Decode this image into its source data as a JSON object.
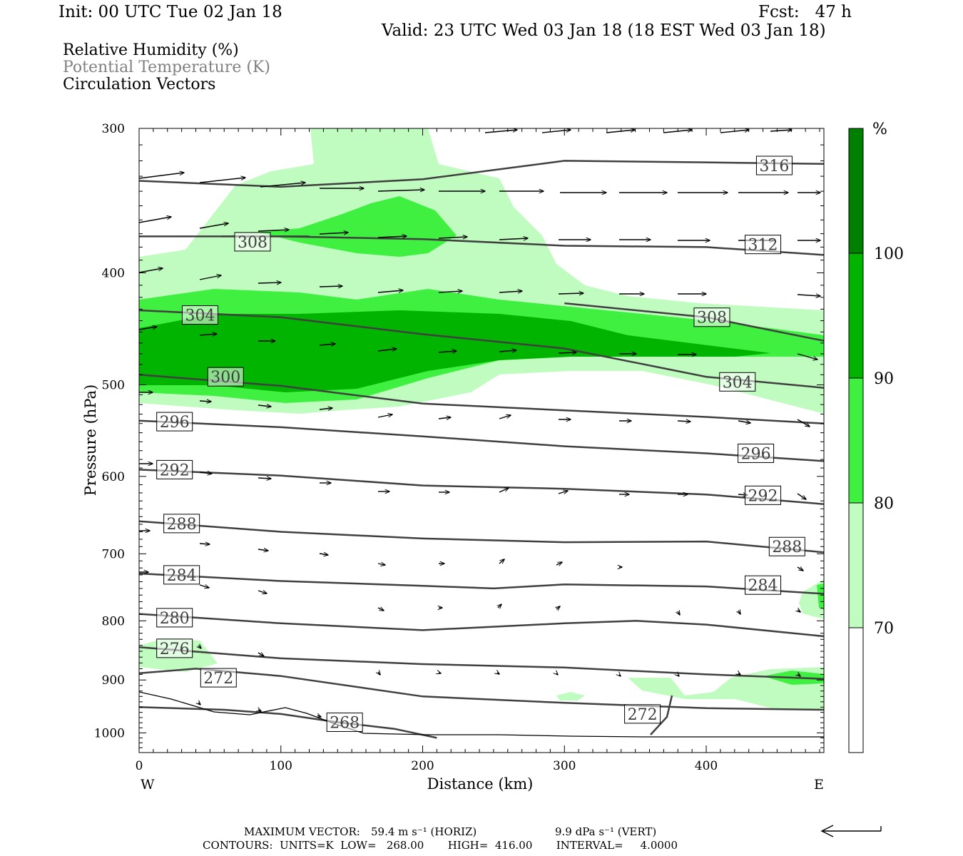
{
  "header": {
    "init": "Init: 00 UTC Tue 02 Jan 18",
    "fcst": "Fcst:   47 h",
    "valid": "Valid: 23 UTC Wed 03 Jan 18 (18 EST Wed 03 Jan 18)"
  },
  "legend_text": {
    "rh": "Relative Humidity (%)",
    "theta": "Potential Temperature (K)",
    "vectors": "Circulation Vectors"
  },
  "footer": {
    "max_vector_label": "MAXIMUM VECTOR:",
    "horiz": "59.4 m s⁻¹ (HORIZ)",
    "vert": "9.9 dPa s⁻¹ (VERT)",
    "contours": "CONTOURS:  UNITS=K  LOW=   268.00       HIGH=  416.00       INTERVAL=     4.0000"
  },
  "colors": {
    "rh_70": "#c0fcc0",
    "rh_80": "#40f040",
    "rh_90": "#00b400",
    "rh_100": "#008000",
    "contour": "#404040"
  },
  "chart_data": {
    "type": "contour",
    "xlabel": "Distance (km)",
    "ylabel": "Pressure (hPa)",
    "xlim": [
      0,
      483
    ],
    "ylim": [
      1040,
      300
    ],
    "xticks": [
      "0",
      "100",
      "200",
      "300",
      "400"
    ],
    "yticks": [
      "300",
      "400",
      "500",
      "600",
      "700",
      "800",
      "900",
      "1000"
    ],
    "x_end_labels": {
      "left": "W",
      "right": "E"
    },
    "colorbar": {
      "unit": "%",
      "levels": [
        "70",
        "80",
        "90",
        "100"
      ]
    },
    "theta_contours": [
      {
        "label": "316",
        "label_at": [
          448,
          323
        ],
        "points": [
          [
            0,
            333
          ],
          [
            100,
            337
          ],
          [
            200,
            332
          ],
          [
            300,
            320
          ],
          [
            400,
            321
          ],
          [
            483,
            322
          ]
        ]
      },
      {
        "label": "312",
        "label_at": [
          440,
          378
        ],
        "points": [
          [
            0,
            372
          ],
          [
            100,
            372
          ],
          [
            200,
            374
          ],
          [
            300,
            379
          ],
          [
            400,
            380
          ],
          [
            483,
            386
          ]
        ]
      },
      {
        "label": "308",
        "label_at": [
          80,
          376
        ],
        "points": [
          [
            58,
            372
          ],
          [
            120,
            372
          ]
        ]
      },
      {
        "label": "308",
        "label_at": [
          404,
          437
        ],
        "points": [
          [
            300,
            425
          ],
          [
            400,
            437
          ],
          [
            483,
            458
          ]
        ]
      },
      {
        "label": "304",
        "label_at": [
          43,
          435
        ],
        "points": [
          [
            0,
            431
          ],
          [
            100,
            437
          ],
          [
            200,
            452
          ],
          [
            300,
            465
          ],
          [
            400,
            492
          ],
          [
            483,
            503
          ]
        ]
      },
      {
        "label": "304",
        "label_at": [
          422,
          497
        ],
        "points": [
          [
            422,
            497
          ]
        ]
      },
      {
        "label": "300",
        "label_at": [
          61,
          492
        ],
        "points": [
          [
            0,
            490
          ],
          [
            100,
            501
          ],
          [
            200,
            519
          ],
          [
            300,
            526
          ],
          [
            400,
            533
          ],
          [
            483,
            540
          ]
        ]
      },
      {
        "label": "296",
        "label_at": [
          25,
          538
        ],
        "points": [
          [
            0,
            537
          ],
          [
            100,
            544
          ],
          [
            200,
            554
          ],
          [
            300,
            565
          ],
          [
            400,
            573
          ],
          [
            483,
            582
          ]
        ]
      },
      {
        "label": "296",
        "label_at": [
          435,
          573
        ],
        "points": [
          [
            435,
            573
          ]
        ]
      },
      {
        "label": "292",
        "label_at": [
          25,
          592
        ],
        "points": [
          [
            0,
            592
          ],
          [
            100,
            599
          ],
          [
            200,
            611
          ],
          [
            300,
            615
          ],
          [
            400,
            622
          ],
          [
            483,
            634
          ]
        ]
      },
      {
        "label": "292",
        "label_at": [
          440,
          623
        ],
        "points": [
          [
            440,
            623
          ]
        ]
      },
      {
        "label": "288",
        "label_at": [
          30,
          659
        ],
        "points": [
          [
            0,
            656
          ],
          [
            100,
            670
          ],
          [
            200,
            679
          ],
          [
            300,
            684
          ],
          [
            400,
            683
          ],
          [
            483,
            698
          ]
        ]
      },
      {
        "label": "288",
        "label_at": [
          457,
          690
        ],
        "points": [
          [
            457,
            690
          ]
        ]
      },
      {
        "label": "284",
        "label_at": [
          30,
          730
        ],
        "points": [
          [
            0,
            728
          ],
          [
            100,
            739
          ],
          [
            200,
            746
          ],
          [
            250,
            750
          ],
          [
            300,
            744
          ],
          [
            400,
            747
          ],
          [
            483,
            758
          ]
        ]
      },
      {
        "label": "284",
        "label_at": [
          440,
          745
        ],
        "points": [
          [
            440,
            745
          ]
        ]
      },
      {
        "label": "280",
        "label_at": [
          25,
          795
        ],
        "points": [
          [
            0,
            789
          ],
          [
            100,
            804
          ],
          [
            200,
            815
          ],
          [
            300,
            804
          ],
          [
            350,
            800
          ],
          [
            400,
            806
          ],
          [
            483,
            825
          ]
        ]
      },
      {
        "label": "276",
        "label_at": [
          25,
          845
        ],
        "points": [
          [
            0,
            843
          ],
          [
            100,
            862
          ],
          [
            200,
            872
          ],
          [
            300,
            878
          ],
          [
            400,
            890
          ],
          [
            483,
            898
          ]
        ]
      },
      {
        "label": "272",
        "label_at": [
          56,
          896
        ],
        "points": [
          [
            0,
            888
          ],
          [
            40,
            880
          ],
          [
            100,
            893
          ],
          [
            200,
            930
          ],
          [
            300,
            942
          ],
          [
            400,
            952
          ],
          [
            483,
            955
          ]
        ]
      },
      {
        "label": "268",
        "label_at": [
          145,
          979
        ],
        "points": [
          [
            0,
            950
          ],
          [
            60,
            955
          ],
          [
            100,
            963
          ],
          [
            140,
            979
          ],
          [
            180,
            992
          ],
          [
            210,
            1010
          ]
        ]
      },
      {
        "label": "272",
        "label_at": [
          355,
          963
        ],
        "points": [
          [
            355,
            963
          ]
        ]
      }
    ]
  }
}
